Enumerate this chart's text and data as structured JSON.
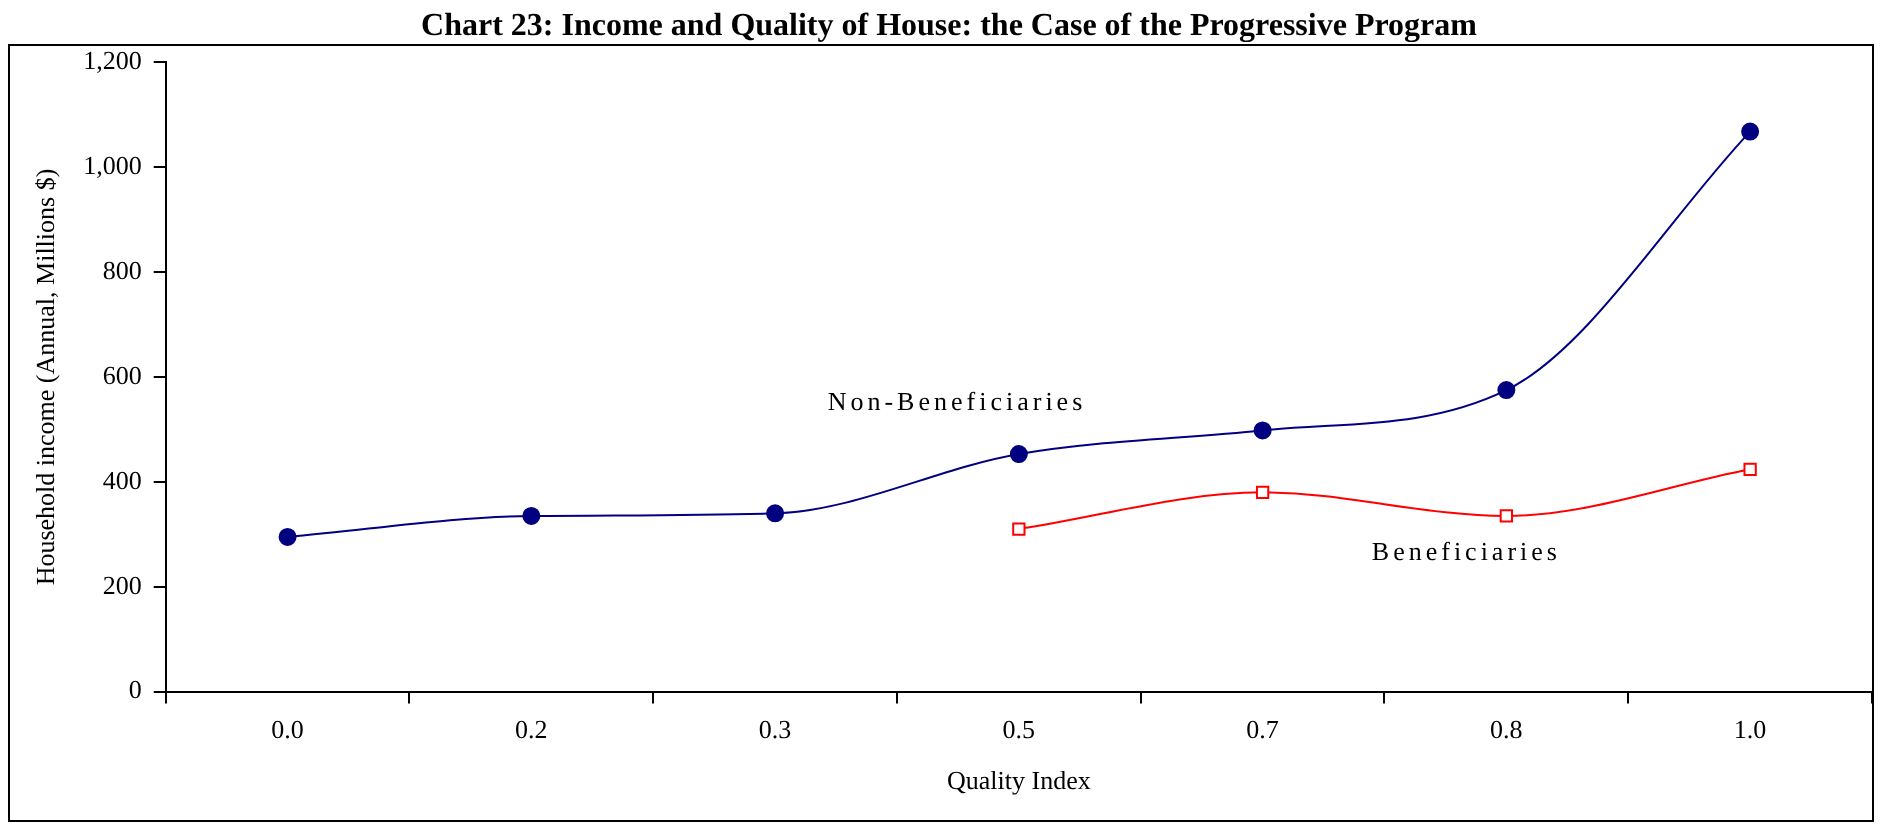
{
  "chart_data": {
    "type": "line",
    "title": "Chart 23: Income and Quality of House: the Case of the Progressive Program",
    "xlabel": "Quality Index",
    "ylabel": "Household income (Annual, Millions $)",
    "categories": [
      "0.0",
      "0.2",
      "0.3",
      "0.5",
      "0.7",
      "0.8",
      "1.0"
    ],
    "series": [
      {
        "name": "Non-Beneficiaries",
        "color": "#000080",
        "marker": "circle",
        "values": [
          295,
          335,
          340,
          453,
          498,
          575,
          1068
        ]
      },
      {
        "name": "Beneficiaries",
        "color": "#ff0000",
        "marker": "square",
        "values": [
          null,
          null,
          null,
          310,
          380,
          335,
          424
        ]
      }
    ],
    "ylim": [
      0,
      1200
    ],
    "yticks": [
      {
        "value": 0,
        "label": "0"
      },
      {
        "value": 200,
        "label": "200"
      },
      {
        "value": 400,
        "label": "400"
      },
      {
        "value": 600,
        "label": "600"
      },
      {
        "value": 800,
        "label": "800"
      },
      {
        "value": 1000,
        "label": "1,000"
      },
      {
        "value": 1200,
        "label": "1,200"
      }
    ],
    "grid": false,
    "legend": false
  }
}
